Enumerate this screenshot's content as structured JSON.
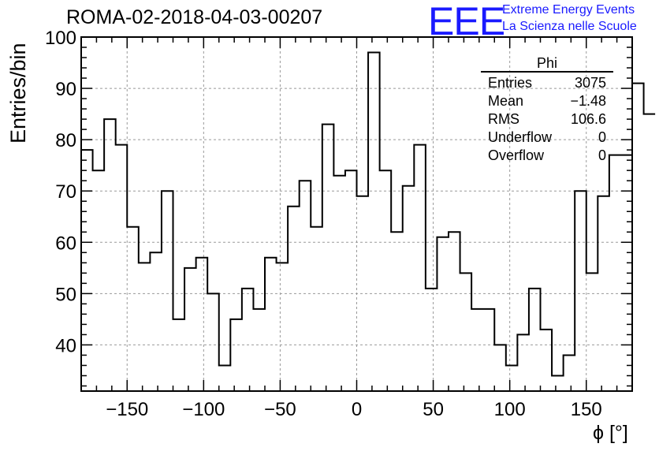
{
  "title": "ROMA-02-2018-04-03-00207",
  "logo": {
    "text": "EEE",
    "line1": "Extreme Energy Events",
    "line2": "La Scienza nelle Scuole",
    "color": "#1a1aff"
  },
  "stats_box": {
    "title": "Phi",
    "rows": [
      {
        "label": "Entries",
        "value": "3075"
      },
      {
        "label": "Mean",
        "value": "−1.48"
      },
      {
        "label": "RMS",
        "value": "106.6"
      },
      {
        "label": "Underflow",
        "value": "0"
      },
      {
        "label": "Overflow",
        "value": "0"
      }
    ]
  },
  "chart_data": {
    "type": "histogram",
    "title": "ROMA-02-2018-04-03-00207",
    "xlabel": "ϕ [°]",
    "ylabel": "Entries/bin",
    "xlim": [
      -180,
      180
    ],
    "ylim": [
      31,
      100
    ],
    "bin_width": 7.5,
    "bin_edges_start": -180,
    "values": [
      78,
      74,
      84,
      79,
      63,
      56,
      58,
      70,
      45,
      55,
      57,
      50,
      36,
      45,
      51,
      47,
      57,
      56,
      67,
      72,
      63,
      83,
      73,
      74,
      69,
      97,
      74,
      62,
      71,
      79,
      51,
      61,
      62,
      54,
      47,
      47,
      40,
      36,
      42,
      51,
      43,
      34,
      38,
      70,
      54,
      69,
      77,
      77,
      91,
      85
    ],
    "x_ticks": [
      -150,
      -100,
      -50,
      0,
      50,
      100,
      150
    ],
    "x_tick_labels": [
      "−150",
      "−100",
      "−50",
      "0",
      "50",
      "100",
      "150"
    ],
    "y_ticks": [
      40,
      50,
      60,
      70,
      80,
      90,
      100
    ],
    "y_tick_labels": [
      "40",
      "50",
      "60",
      "70",
      "80",
      "90",
      "100"
    ],
    "grid": true,
    "line_color": "#000000"
  }
}
